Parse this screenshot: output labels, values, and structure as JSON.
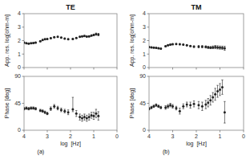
{
  "chart_data": [
    {
      "type": "scatter",
      "title": "TE",
      "ylabel": "App. res. log[ohm-m]",
      "xlim": [
        4,
        0
      ],
      "xticks": [
        0,
        1,
        2,
        3,
        4
      ],
      "ylim": [
        0,
        4
      ],
      "yticks": [
        0,
        1,
        2,
        3,
        4
      ],
      "grid": false,
      "tick_labels": "y",
      "x": [
        4.0,
        3.9,
        3.8,
        3.7,
        3.6,
        3.5,
        3.3,
        3.2,
        3.1,
        3.0,
        2.85,
        2.7,
        2.55,
        2.4,
        2.25,
        2.1,
        1.9,
        1.75,
        1.6,
        1.5,
        1.4,
        1.3,
        1.2,
        1.1,
        1.0,
        0.9,
        0.8
      ],
      "series": [
        {
          "color": "#222222",
          "values": [
            1.85,
            1.8,
            1.78,
            1.8,
            1.82,
            1.85,
            1.95,
            2.05,
            2.1,
            2.12,
            2.18,
            2.25,
            2.28,
            2.22,
            2.15,
            2.1,
            2.12,
            2.2,
            2.28,
            2.32,
            2.35,
            2.3,
            2.32,
            2.38,
            2.42,
            2.48,
            2.45
          ],
          "error_lower": [
            0.04,
            0.04,
            0.04,
            0.04,
            0.04,
            0.04,
            0.04,
            0.04,
            0.04,
            0.04,
            0.04,
            0.04,
            0.04,
            0.04,
            0.04,
            0.04,
            0.04,
            0.04,
            0.04,
            0.04,
            0.04,
            0.04,
            0.04,
            0.05,
            0.06,
            0.08,
            0.08
          ],
          "error_upper": [
            0.04,
            0.04,
            0.04,
            0.04,
            0.04,
            0.04,
            0.04,
            0.04,
            0.04,
            0.04,
            0.04,
            0.04,
            0.04,
            0.04,
            0.04,
            0.04,
            0.04,
            0.04,
            0.04,
            0.04,
            0.04,
            0.04,
            0.04,
            0.05,
            0.06,
            0.08,
            0.08
          ]
        }
      ]
    },
    {
      "type": "scatter",
      "title": "TM",
      "ylabel": "App. res. log[ohm-m]",
      "xlim": [
        4,
        0
      ],
      "xticks": [
        0,
        1,
        2,
        3,
        4
      ],
      "ylim": [
        0,
        4
      ],
      "yticks": [
        0,
        1,
        2,
        3,
        4
      ],
      "grid": false,
      "tick_labels": "y",
      "x": [
        4.0,
        3.9,
        3.8,
        3.7,
        3.6,
        3.5,
        3.3,
        3.2,
        3.1,
        3.0,
        2.85,
        2.7,
        2.55,
        2.4,
        2.25,
        2.1,
        1.9,
        1.75,
        1.6,
        1.5,
        1.4,
        1.3,
        1.2,
        1.1,
        1.0,
        0.9,
        0.8
      ],
      "series": [
        {
          "color": "#222222",
          "values": [
            1.52,
            1.5,
            1.48,
            1.46,
            1.43,
            1.4,
            1.58,
            1.65,
            1.7,
            1.73,
            1.74,
            1.73,
            1.7,
            1.65,
            1.6,
            1.55,
            1.55,
            1.55,
            1.53,
            1.5,
            1.48,
            1.5,
            1.52,
            1.5,
            1.48,
            1.47,
            1.43
          ],
          "error_lower": [
            0.04,
            0.04,
            0.04,
            0.04,
            0.04,
            0.04,
            0.04,
            0.04,
            0.04,
            0.04,
            0.04,
            0.04,
            0.04,
            0.04,
            0.04,
            0.06,
            0.08,
            0.08,
            0.08,
            0.08,
            0.08,
            0.1,
            0.12,
            0.12,
            0.12,
            0.12,
            0.15
          ],
          "error_upper": [
            0.04,
            0.04,
            0.04,
            0.04,
            0.04,
            0.04,
            0.04,
            0.04,
            0.04,
            0.04,
            0.04,
            0.04,
            0.04,
            0.04,
            0.04,
            0.06,
            0.08,
            0.08,
            0.08,
            0.08,
            0.08,
            0.1,
            0.12,
            0.12,
            0.12,
            0.12,
            0.15
          ]
        }
      ]
    },
    {
      "type": "scatter",
      "ylabel": "Phase [deg]",
      "xlabel": "log  [Hz]",
      "annotation": "(a)",
      "xlim": [
        4,
        0
      ],
      "xticks": [
        0,
        1,
        2,
        3,
        4
      ],
      "ylim": [
        0,
        90
      ],
      "yticks": [
        0,
        45,
        90
      ],
      "grid": false,
      "x": [
        4.0,
        3.9,
        3.8,
        3.7,
        3.6,
        3.5,
        3.3,
        3.2,
        3.1,
        3.0,
        2.85,
        2.7,
        2.55,
        2.4,
        2.25,
        2.1,
        1.9,
        1.75,
        1.6,
        1.5,
        1.4,
        1.3,
        1.2,
        1.1,
        1.0,
        0.9,
        0.8
      ],
      "series": [
        {
          "color": "#222222",
          "values": [
            36,
            37,
            36,
            37,
            37,
            36,
            33,
            32,
            30,
            28,
            36,
            40,
            37,
            34,
            32,
            30,
            35,
            28,
            22,
            20,
            22,
            20,
            22,
            25,
            24,
            28,
            24
          ],
          "error_lower": [
            2,
            2,
            2,
            2,
            2,
            2,
            2,
            2,
            2,
            2,
            3,
            3,
            3,
            3,
            3,
            4,
            4,
            5,
            5,
            5,
            5,
            5,
            5,
            5,
            6,
            7,
            7
          ],
          "error_upper": [
            2,
            2,
            2,
            2,
            2,
            2,
            2,
            2,
            2,
            2,
            3,
            3,
            3,
            3,
            3,
            4,
            20,
            5,
            5,
            5,
            5,
            5,
            5,
            5,
            6,
            7,
            7
          ]
        }
      ]
    },
    {
      "type": "scatter",
      "ylabel": "Phase [deg]",
      "xlabel": "log  [Hz]",
      "annotation": "(b)",
      "xlim": [
        4,
        0
      ],
      "xticks": [
        0,
        1,
        2,
        3,
        4
      ],
      "ylim": [
        0,
        90
      ],
      "yticks": [
        0,
        45,
        90
      ],
      "grid": false,
      "x": [
        4.0,
        3.9,
        3.8,
        3.7,
        3.6,
        3.5,
        3.3,
        3.2,
        3.1,
        3.0,
        2.85,
        2.7,
        2.55,
        2.4,
        2.25,
        2.1,
        1.9,
        1.75,
        1.6,
        1.5,
        1.4,
        1.3,
        1.2,
        1.1,
        1.0,
        0.9,
        0.8
      ],
      "series": [
        {
          "color": "#222222",
          "values": [
            36,
            38,
            40,
            42,
            40,
            38,
            38,
            40,
            42,
            40,
            37,
            32,
            40,
            43,
            42,
            44,
            42,
            40,
            43,
            46,
            50,
            55,
            60,
            65,
            68,
            72,
            30
          ],
          "error_lower": [
            2,
            2,
            2,
            2,
            2,
            2,
            3,
            3,
            3,
            3,
            3,
            5,
            4,
            4,
            5,
            5,
            6,
            7,
            7,
            7,
            8,
            8,
            10,
            10,
            10,
            12,
            18
          ],
          "error_upper": [
            2,
            2,
            2,
            2,
            2,
            2,
            3,
            3,
            3,
            3,
            3,
            5,
            4,
            4,
            5,
            5,
            6,
            7,
            7,
            7,
            8,
            8,
            10,
            10,
            10,
            12,
            18
          ]
        }
      ]
    }
  ]
}
